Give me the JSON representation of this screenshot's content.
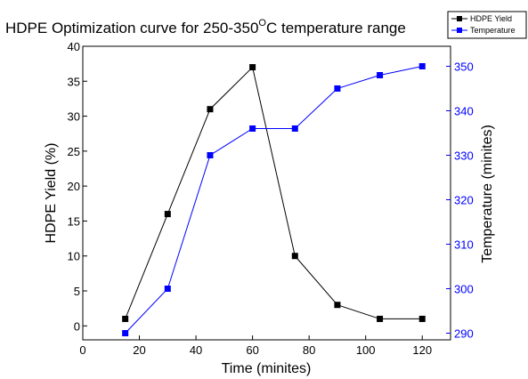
{
  "chart_data": {
    "type": "line",
    "title": {
      "main": "HDPE Optimization curve for 250-350",
      "superscript": "O",
      "tail": "C temperature range"
    },
    "xlabel": "Time (minites)",
    "xlim": [
      0,
      130
    ],
    "xticks": [
      0,
      20,
      40,
      60,
      80,
      100,
      120
    ],
    "y_left": {
      "label": "HDPE Yield (%)",
      "lim": [
        -2,
        40
      ],
      "ticks": [
        0,
        5,
        10,
        15,
        20,
        25,
        30,
        35,
        40
      ]
    },
    "y_right": {
      "label": "Temperature (minites)",
      "lim": [
        288.5,
        354.5
      ],
      "ticks": [
        290,
        300,
        310,
        320,
        330,
        340,
        350
      ]
    },
    "series": [
      {
        "name": "HDPE Yield",
        "axis": "left",
        "color": "#000000",
        "marker": "square",
        "x": [
          15,
          30,
          45,
          60,
          75,
          90,
          105,
          120
        ],
        "y": [
          1,
          16,
          31,
          37,
          10,
          3,
          1,
          1
        ]
      },
      {
        "name": "Temperature",
        "axis": "right",
        "color": "#0000ff",
        "marker": "square",
        "x": [
          15,
          30,
          45,
          60,
          75,
          90,
          105,
          120
        ],
        "y": [
          290,
          300,
          330,
          336,
          336,
          345,
          348,
          350
        ]
      }
    ],
    "legend": {
      "position": "top-right",
      "labels": [
        "HDPE Yield",
        "Temperature"
      ]
    },
    "grid": false
  }
}
